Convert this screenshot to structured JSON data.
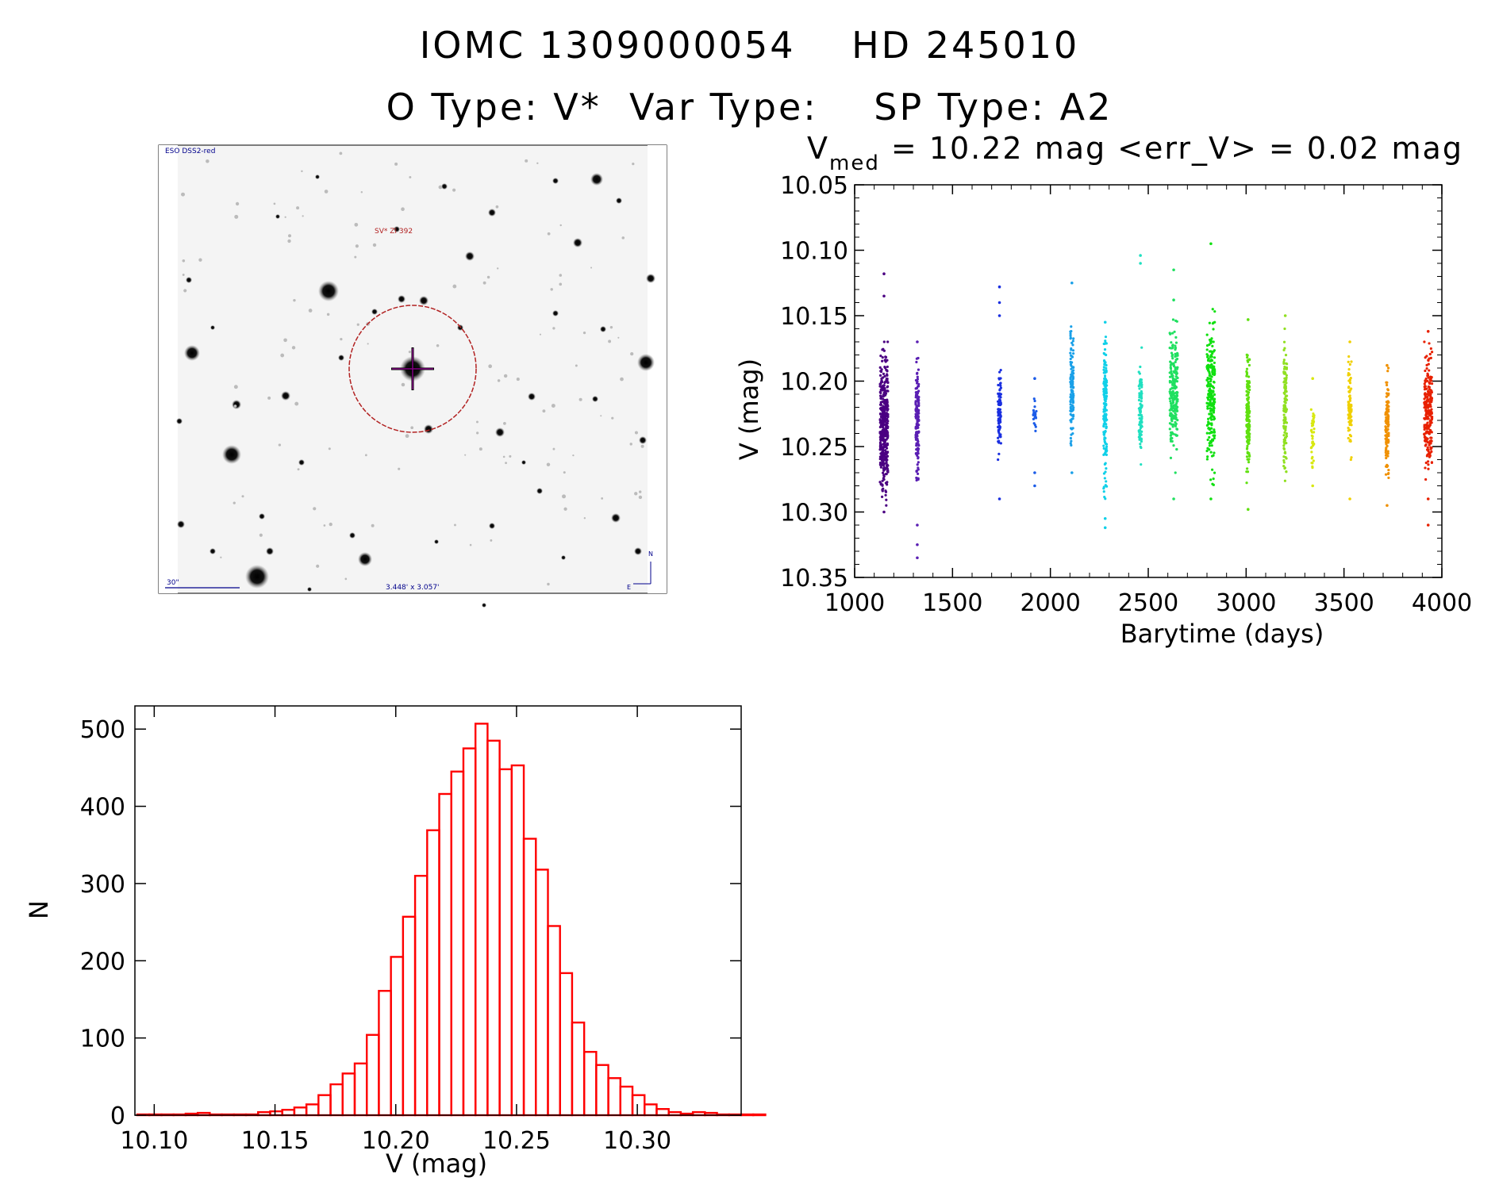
{
  "header": {
    "catalog_id": "IOMC 1309000054",
    "hd_id": "HD 245010",
    "o_type": "O Type: V*",
    "var_type": "Var Type:",
    "sp_type": "SP Type: A2"
  },
  "finder": {
    "survey_label": "ESO DSS2-red",
    "target_label": "SV* ZI 392",
    "scale_label": "30\"",
    "fov_label": "3.448' x 3.057'",
    "north_label": "N",
    "east_label": "E"
  },
  "colors": {
    "histogram": "#ff0000",
    "axis": "#000000",
    "finder_circle": "#b22222",
    "finder_text": "#00008b"
  },
  "chart_data": [
    {
      "type": "scatter",
      "title_prefix": "V",
      "title_sub": "med",
      "title_rest": " = 10.22 mag <err_V> = 0.02 mag",
      "xlabel": "Barytime (days)",
      "ylabel": "V (mag)",
      "xlim": [
        1000,
        4000
      ],
      "ylim": [
        10.35,
        10.05
      ],
      "x_ticks": [
        "1000",
        "1500",
        "2000",
        "2500",
        "3000",
        "3500",
        "4000"
      ],
      "y_ticks": [
        "10.05",
        "10.10",
        "10.15",
        "10.20",
        "10.25",
        "10.30",
        "10.35"
      ],
      "series": [
        {
          "x": 1150,
          "range": [
            10.17,
            10.295
          ],
          "outliers": [
            10.118,
            10.135,
            10.3
          ],
          "count": 400,
          "color": "#4b0082"
        },
        {
          "x": 1320,
          "range": [
            10.18,
            10.28
          ],
          "outliers": [
            10.17,
            10.31,
            10.325,
            10.335
          ],
          "count": 150,
          "color": "#5a1fb3"
        },
        {
          "x": 1740,
          "range": [
            10.19,
            10.26
          ],
          "outliers": [
            10.128,
            10.14,
            10.15,
            10.29
          ],
          "count": 90,
          "color": "#1a2fe0"
        },
        {
          "x": 1920,
          "range": [
            10.21,
            10.24
          ],
          "outliers": [
            10.198,
            10.27,
            10.28
          ],
          "count": 22,
          "color": "#1c5ce8"
        },
        {
          "x": 2110,
          "range": [
            10.15,
            10.26
          ],
          "outliers": [
            10.125,
            10.27
          ],
          "count": 120,
          "color": "#1aa0e8"
        },
        {
          "x": 2280,
          "range": [
            10.16,
            10.29
          ],
          "outliers": [
            10.155,
            10.305,
            10.312
          ],
          "count": 160,
          "color": "#10d0e8"
        },
        {
          "x": 2460,
          "range": [
            10.17,
            10.275
          ],
          "outliers": [
            10.104,
            10.11
          ],
          "count": 90,
          "color": "#20e0c0"
        },
        {
          "x": 2630,
          "range": [
            10.145,
            10.27
          ],
          "outliers": [
            10.115,
            10.138,
            10.29
          ],
          "count": 210,
          "color": "#20e060"
        },
        {
          "x": 2820,
          "range": [
            10.145,
            10.28
          ],
          "outliers": [
            10.095,
            10.29
          ],
          "count": 220,
          "color": "#10e010"
        },
        {
          "x": 3010,
          "range": [
            10.17,
            10.285
          ],
          "outliers": [
            10.153,
            10.298
          ],
          "count": 150,
          "color": "#60e010"
        },
        {
          "x": 3200,
          "range": [
            10.16,
            10.28
          ],
          "outliers": [
            10.15
          ],
          "count": 120,
          "color": "#90e020"
        },
        {
          "x": 3340,
          "range": [
            10.21,
            10.27
          ],
          "outliers": [
            10.198,
            10.28
          ],
          "count": 40,
          "color": "#d8e810"
        },
        {
          "x": 3530,
          "range": [
            10.18,
            10.26
          ],
          "outliers": [
            10.17,
            10.29
          ],
          "count": 80,
          "color": "#f0d000"
        },
        {
          "x": 3720,
          "range": [
            10.19,
            10.28
          ],
          "outliers": [
            10.188,
            10.295
          ],
          "count": 110,
          "color": "#f09000"
        },
        {
          "x": 3930,
          "range": [
            10.17,
            10.28
          ],
          "outliers": [
            10.162,
            10.29,
            10.31
          ],
          "count": 220,
          "color": "#e82000"
        }
      ]
    },
    {
      "type": "bar",
      "xlabel": "V (mag)",
      "ylabel": "N",
      "xlim": [
        10.092,
        10.343
      ],
      "ylim": [
        0,
        530
      ],
      "x_ticks": [
        "10.10",
        "10.15",
        "10.20",
        "10.25",
        "10.30"
      ],
      "y_ticks": [
        "0",
        "100",
        "200",
        "300",
        "400",
        "500"
      ],
      "bin_start": 10.093,
      "bin_width": 0.005,
      "values": [
        1,
        1,
        1,
        1,
        2,
        3,
        1,
        1,
        1,
        1,
        4,
        5,
        7,
        10,
        14,
        26,
        40,
        54,
        67,
        104,
        161,
        205,
        257,
        310,
        369,
        416,
        445,
        475,
        507,
        485,
        448,
        453,
        358,
        318,
        245,
        184,
        120,
        82,
        65,
        48,
        37,
        26,
        14,
        8,
        4,
        2,
        4,
        3,
        1,
        1,
        1,
        1
      ]
    }
  ]
}
